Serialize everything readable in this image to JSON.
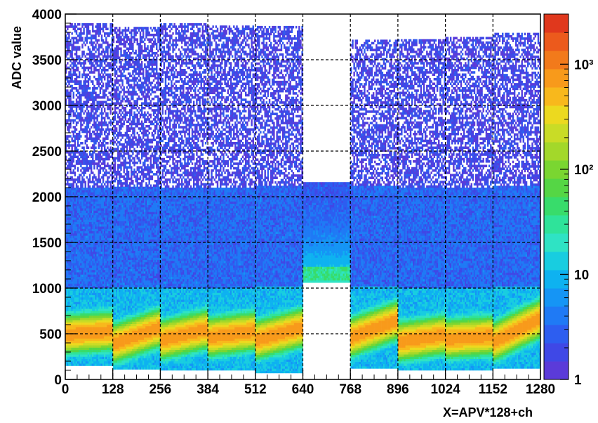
{
  "chart_data": {
    "type": "heatmap",
    "title": "",
    "xlabel": "X=APV*128+ch",
    "ylabel": "ADC value",
    "xlim": [
      0,
      1280
    ],
    "ylim": [
      0,
      4000
    ],
    "x_ticks": [
      0,
      128,
      256,
      384,
      512,
      640,
      768,
      896,
      1024,
      1152,
      1280
    ],
    "x_tick_labels": [
      "0",
      "128",
      "256",
      "384",
      "512",
      "640",
      "768",
      "896",
      "1024",
      "1152",
      "1280"
    ],
    "y_ticks": [
      0,
      500,
      1000,
      1500,
      2000,
      2500,
      3000,
      3500,
      4000
    ],
    "y_tick_labels": [
      "0",
      "500",
      "1000",
      "1500",
      "2000",
      "2500",
      "3000",
      "3500",
      "4000"
    ],
    "grid": true,
    "colorbar": {
      "scale": "log",
      "range": [
        1,
        3000
      ],
      "tick_labels": [
        "1",
        "10",
        "10²",
        "10³"
      ],
      "tick_values": [
        1,
        10,
        100,
        1000
      ],
      "colors": [
        "#5b3bd9",
        "#3f48e6",
        "#2d5ef0",
        "#1f7af5",
        "#1595f5",
        "#0eb2f0",
        "#18cde0",
        "#2fe3c4",
        "#2fe39a",
        "#38dc6b",
        "#55d645",
        "#7ad631",
        "#a3d82a",
        "#c9dc26",
        "#ecd91f",
        "#f8b81c",
        "#f89a1b",
        "#f27a1b",
        "#ec5a1c",
        "#e0381d"
      ]
    },
    "apv_groups": [
      {
        "x_range": [
          0,
          128
        ],
        "pedestal_start": 480,
        "pedestal_end": 520,
        "low_adc": 150,
        "high_adc": 3900,
        "peak_count": 800
      },
      {
        "x_range": [
          128,
          256
        ],
        "pedestal_start": 380,
        "pedestal_end": 560,
        "low_adc": 110,
        "high_adc": 3850,
        "peak_count": 800
      },
      {
        "x_range": [
          256,
          384
        ],
        "pedestal_start": 420,
        "pedestal_end": 540,
        "low_adc": 100,
        "high_adc": 3880,
        "peak_count": 800
      },
      {
        "x_range": [
          384,
          512
        ],
        "pedestal_start": 450,
        "pedestal_end": 520,
        "low_adc": 100,
        "high_adc": 3860,
        "peak_count": 800
      },
      {
        "x_range": [
          512,
          640
        ],
        "pedestal_start": 420,
        "pedestal_end": 560,
        "low_adc": 70,
        "high_adc": 3870,
        "peak_count": 800
      },
      {
        "x_range": [
          640,
          768
        ],
        "pedestal_start": 1080,
        "pedestal_end": 1080,
        "low_adc": 1060,
        "high_adc": 2150,
        "peak_count": 2500
      },
      {
        "x_range": [
          768,
          896
        ],
        "pedestal_start": 450,
        "pedestal_end": 640,
        "low_adc": 120,
        "high_adc": 3700,
        "peak_count": 800
      },
      {
        "x_range": [
          896,
          1024
        ],
        "pedestal_start": 400,
        "pedestal_end": 480,
        "low_adc": 100,
        "high_adc": 3720,
        "peak_count": 800
      },
      {
        "x_range": [
          1024,
          1152
        ],
        "pedestal_start": 430,
        "pedestal_end": 470,
        "low_adc": 100,
        "high_adc": 3750,
        "peak_count": 800
      },
      {
        "x_range": [
          1152,
          1280
        ],
        "pedestal_start": 400,
        "pedestal_end": 660,
        "low_adc": 120,
        "high_adc": 3780,
        "peak_count": 800
      }
    ]
  }
}
